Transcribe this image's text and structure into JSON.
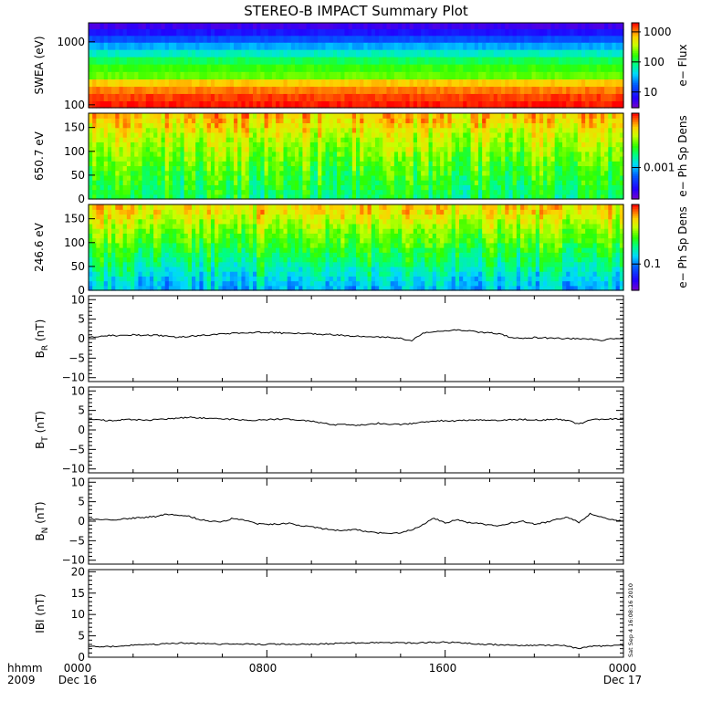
{
  "title": "STEREO-B IMPACT Summary Plot",
  "footer": {
    "corner_line1": "hhmm",
    "corner_line2": "2009",
    "ticks": [
      {
        "time": "0000",
        "date": "Dec 16"
      },
      {
        "time": "0800",
        "date": ""
      },
      {
        "time": "1600",
        "date": ""
      },
      {
        "time": "0000",
        "date": "Dec 17"
      }
    ],
    "timestamp": "Sat Sep  4 16:08:16 2010"
  },
  "chart_data": [
    {
      "type": "heatmap",
      "id": "swea",
      "ylabel": "SWEA (eV)",
      "y_scale": "log",
      "ylim": [
        90,
        2000
      ],
      "yticks": [
        {
          "value": 100,
          "label": "100"
        },
        {
          "value": 1000,
          "label": "1000"
        }
      ],
      "colorbar": {
        "label": "e− Flux",
        "scale": "log",
        "range": [
          3,
          2000
        ],
        "ticks": [
          {
            "value": 10,
            "label": "10"
          },
          {
            "value": 100,
            "label": "100"
          },
          {
            "value": 1000,
            "label": "1000"
          }
        ],
        "colormap": "rainbow"
      },
      "x_range_hours": [
        0,
        24
      ],
      "rows": [
        {
          "y": 1800,
          "value": 5
        },
        {
          "y": 1400,
          "value": 8
        },
        {
          "y": 1100,
          "value": 15
        },
        {
          "y": 850,
          "value": 30
        },
        {
          "y": 650,
          "value": 60
        },
        {
          "y": 500,
          "value": 110
        },
        {
          "y": 380,
          "value": 170
        },
        {
          "y": 290,
          "value": 220
        },
        {
          "y": 220,
          "value": 700
        },
        {
          "y": 170,
          "value": 1100
        },
        {
          "y": 130,
          "value": 1500
        },
        {
          "y": 100,
          "value": 1800
        }
      ]
    },
    {
      "type": "heatmap",
      "id": "pad650",
      "ylabel": "650.7 eV",
      "ylim": [
        0,
        180
      ],
      "yticks": [
        {
          "value": 0,
          "label": "0"
        },
        {
          "value": 50,
          "label": "50"
        },
        {
          "value": 100,
          "label": "100"
        },
        {
          "value": 150,
          "label": "150"
        }
      ],
      "colorbar": {
        "label": "e− Ph Sp Dens",
        "scale": "log",
        "range": [
          0.0003,
          0.008
        ],
        "ticks": [
          {
            "value": 0.001,
            "label": "0.001"
          }
        ],
        "colormap": "rainbow"
      },
      "x_range_hours": [
        0,
        24
      ],
      "mean_level_by_pitch_angle": [
        {
          "y": 10,
          "level": 0.55
        },
        {
          "y": 50,
          "level": 0.6
        },
        {
          "y": 90,
          "level": 0.67
        },
        {
          "y": 130,
          "level": 0.74
        },
        {
          "y": 170,
          "level": 0.84
        }
      ]
    },
    {
      "type": "heatmap",
      "id": "pad246",
      "ylabel": "246.6 eV",
      "ylim": [
        0,
        180
      ],
      "yticks": [
        {
          "value": 0,
          "label": "0"
        },
        {
          "value": 50,
          "label": "50"
        },
        {
          "value": 100,
          "label": "100"
        },
        {
          "value": 150,
          "label": "150"
        }
      ],
      "colorbar": {
        "label": "e− Ph Sp Dens",
        "scale": "log",
        "range": [
          0.04,
          0.8
        ],
        "ticks": [
          {
            "value": 0.1,
            "label": "0.1"
          }
        ],
        "colormap": "rainbow"
      },
      "x_range_hours": [
        0,
        24
      ],
      "mean_level_by_pitch_angle": [
        {
          "y": 10,
          "level": 0.38
        },
        {
          "y": 50,
          "level": 0.5
        },
        {
          "y": 90,
          "level": 0.6
        },
        {
          "y": 130,
          "level": 0.7
        },
        {
          "y": 170,
          "level": 0.82
        }
      ]
    },
    {
      "type": "line",
      "id": "br",
      "ylabel_main": "B",
      "ylabel_sub": "R",
      "ylabel_unit": " (nT)",
      "ylim": [
        -11,
        11
      ],
      "yticks": [
        {
          "value": -10,
          "label": "−10"
        },
        {
          "value": -5,
          "label": "−5"
        },
        {
          "value": 0,
          "label": "0"
        },
        {
          "value": 5,
          "label": "5"
        },
        {
          "value": 10,
          "label": "10"
        }
      ],
      "x_hours": [
        0,
        0.5,
        1,
        1.5,
        2,
        2.5,
        3,
        3.5,
        4,
        4.5,
        5,
        5.5,
        6,
        6.5,
        7,
        7.5,
        8,
        8.5,
        9,
        9.5,
        10,
        10.5,
        11,
        11.5,
        12,
        12.5,
        13,
        13.5,
        14,
        14.5,
        15,
        15.5,
        16,
        16.5,
        17,
        17.5,
        18,
        18.5,
        19,
        19.5,
        20,
        20.5,
        21,
        21.5,
        22,
        22.5,
        23,
        23.5,
        24
      ],
      "values": [
        0.3,
        0.6,
        0.9,
        0.7,
        1.0,
        0.8,
        0.9,
        0.6,
        0.3,
        0.6,
        0.8,
        1.0,
        1.2,
        1.4,
        1.5,
        1.6,
        1.6,
        1.5,
        1.3,
        1.4,
        1.2,
        1.1,
        1.0,
        0.8,
        0.6,
        0.5,
        0.4,
        0.3,
        0.1,
        -0.5,
        1.4,
        1.9,
        2.1,
        2.2,
        2.1,
        1.7,
        1.5,
        1.2,
        0.2,
        0.1,
        0.3,
        0.2,
        0.1,
        0.0,
        0.0,
        -0.1,
        -0.4,
        0.0,
        0.2
      ]
    },
    {
      "type": "line",
      "id": "bt",
      "ylabel_main": "B",
      "ylabel_sub": "T",
      "ylabel_unit": " (nT)",
      "ylim": [
        -11,
        11
      ],
      "yticks": [
        {
          "value": -10,
          "label": "−10"
        },
        {
          "value": -5,
          "label": "−5"
        },
        {
          "value": 0,
          "label": "0"
        },
        {
          "value": 5,
          "label": "5"
        },
        {
          "value": 10,
          "label": "10"
        }
      ],
      "x_hours": [
        0,
        0.5,
        1,
        1.5,
        2,
        2.5,
        3,
        3.5,
        4,
        4.5,
        5,
        5.5,
        6,
        6.5,
        7,
        7.5,
        8,
        8.5,
        9,
        9.5,
        10,
        10.5,
        11,
        11.5,
        12,
        12.5,
        13,
        13.5,
        14,
        14.5,
        15,
        15.5,
        16,
        16.5,
        17,
        17.5,
        18,
        18.5,
        19,
        19.5,
        20,
        20.5,
        21,
        21.5,
        22,
        22.5,
        23,
        23.5,
        24
      ],
      "values": [
        2.6,
        2.5,
        2.4,
        2.6,
        2.7,
        2.5,
        2.6,
        2.8,
        3.0,
        3.2,
        3.1,
        2.9,
        2.8,
        2.7,
        2.6,
        2.5,
        2.6,
        2.8,
        2.7,
        2.5,
        2.2,
        1.8,
        1.3,
        1.5,
        1.2,
        1.4,
        1.7,
        1.5,
        1.4,
        1.6,
        2.0,
        2.3,
        2.4,
        2.3,
        2.5,
        2.6,
        2.4,
        2.5,
        2.6,
        2.7,
        2.5,
        2.6,
        2.8,
        2.4,
        1.5,
        2.6,
        2.7,
        2.8,
        2.8
      ]
    },
    {
      "type": "line",
      "id": "bn",
      "ylabel_main": "B",
      "ylabel_sub": "N",
      "ylabel_unit": " (nT)",
      "ylim": [
        -11,
        11
      ],
      "yticks": [
        {
          "value": -10,
          "label": "−10"
        },
        {
          "value": -5,
          "label": "−5"
        },
        {
          "value": 0,
          "label": "0"
        },
        {
          "value": 5,
          "label": "5"
        },
        {
          "value": 10,
          "label": "10"
        }
      ],
      "x_hours": [
        0,
        0.5,
        1,
        1.5,
        2,
        2.5,
        3,
        3.5,
        4,
        4.5,
        5,
        5.5,
        6,
        6.5,
        7,
        7.5,
        8,
        8.5,
        9,
        9.5,
        10,
        10.5,
        11,
        11.5,
        12,
        12.5,
        13,
        13.5,
        14,
        14.5,
        15,
        15.5,
        16,
        16.5,
        17,
        17.5,
        18,
        18.5,
        19,
        19.5,
        20,
        20.5,
        21,
        21.5,
        22,
        22.5,
        23,
        23.5,
        24
      ],
      "values": [
        0.6,
        0.4,
        0.3,
        0.5,
        0.8,
        1.0,
        1.2,
        1.8,
        1.6,
        1.3,
        0.4,
        0.0,
        -0.2,
        0.8,
        0.2,
        -0.6,
        -0.9,
        -0.7,
        -0.5,
        -1.2,
        -1.4,
        -1.9,
        -2.2,
        -2.4,
        -2.1,
        -2.7,
        -3.0,
        -3.1,
        -3.0,
        -2.2,
        -0.9,
        0.8,
        -0.5,
        0.4,
        -0.3,
        -0.6,
        -1.0,
        -1.2,
        -0.4,
        0.0,
        -0.7,
        -0.3,
        0.5,
        1.0,
        -0.3,
        1.9,
        1.2,
        0.4,
        0.1
      ]
    },
    {
      "type": "line",
      "id": "bmag",
      "ylabel_main": "IBI",
      "ylabel_sub": "",
      "ylabel_unit": " (nT)",
      "ylim": [
        0,
        20.5
      ],
      "yticks": [
        {
          "value": 0,
          "label": "0"
        },
        {
          "value": 5,
          "label": "5"
        },
        {
          "value": 10,
          "label": "10"
        },
        {
          "value": 15,
          "label": "15"
        },
        {
          "value": 20,
          "label": "20"
        }
      ],
      "x_hours": [
        0,
        0.5,
        1,
        1.5,
        2,
        2.5,
        3,
        3.5,
        4,
        4.5,
        5,
        5.5,
        6,
        6.5,
        7,
        7.5,
        8,
        8.5,
        9,
        9.5,
        10,
        10.5,
        11,
        11.5,
        12,
        12.5,
        13,
        13.5,
        14,
        14.5,
        15,
        15.5,
        16,
        16.5,
        17,
        17.5,
        18,
        18.5,
        19,
        19.5,
        20,
        20.5,
        21,
        21.5,
        22,
        22.5,
        23,
        23.5,
        24
      ],
      "values": [
        2.6,
        2.5,
        2.5,
        2.6,
        2.8,
        2.9,
        3.0,
        3.2,
        3.3,
        3.3,
        3.2,
        3.1,
        3.1,
        3.2,
        3.1,
        3.0,
        3.0,
        3.1,
        3.0,
        3.0,
        3.0,
        3.1,
        3.2,
        3.3,
        3.3,
        3.3,
        3.4,
        3.4,
        3.4,
        3.3,
        3.4,
        3.5,
        3.5,
        3.4,
        3.3,
        3.1,
        3.0,
        2.9,
        2.8,
        2.7,
        2.8,
        2.8,
        2.8,
        2.6,
        2.0,
        2.6,
        2.6,
        2.7,
        2.7
      ]
    }
  ]
}
